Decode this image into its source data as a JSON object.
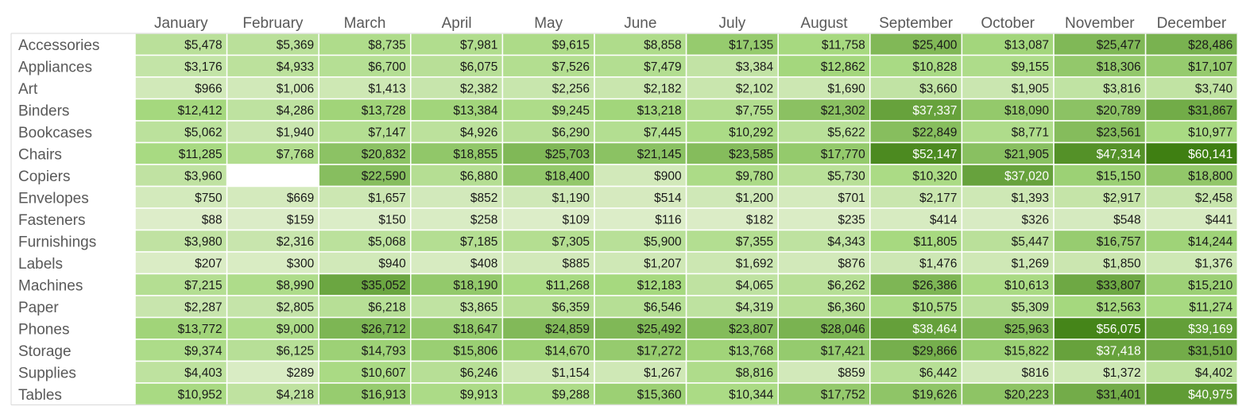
{
  "chart_data": {
    "type": "heatmap",
    "title": "",
    "xlabel": "",
    "ylabel": "",
    "columns": [
      "January",
      "February",
      "March",
      "April",
      "May",
      "June",
      "July",
      "August",
      "September",
      "October",
      "November",
      "December"
    ],
    "rows": [
      "Accessories",
      "Appliances",
      "Art",
      "Binders",
      "Bookcases",
      "Chairs",
      "Copiers",
      "Envelopes",
      "Fasteners",
      "Furnishings",
      "Labels",
      "Machines",
      "Paper",
      "Phones",
      "Storage",
      "Supplies",
      "Tables"
    ],
    "value_format": "currency-usd-no-decimals",
    "color_scale": {
      "low": "#e2efd0",
      "mid": "#a6d97f",
      "high": "#3f7f12",
      "text_dark": "#1a1a1a",
      "text_light": "#ffffff",
      "empty": "#ffffff"
    },
    "values": [
      [
        5478,
        5369,
        8735,
        7981,
        9615,
        8858,
        17135,
        11758,
        25400,
        13087,
        25477,
        28486
      ],
      [
        3176,
        4933,
        6700,
        6075,
        7526,
        7479,
        3384,
        12862,
        10828,
        9155,
        18306,
        17107
      ],
      [
        966,
        1006,
        1413,
        2382,
        2256,
        2182,
        2102,
        1690,
        3660,
        1905,
        3816,
        3740
      ],
      [
        12412,
        4286,
        13728,
        13384,
        9245,
        13218,
        7755,
        21302,
        37337,
        18090,
        20789,
        31867
      ],
      [
        5062,
        1940,
        7147,
        4926,
        6290,
        7445,
        10292,
        5622,
        22849,
        8771,
        23561,
        10977
      ],
      [
        11285,
        7768,
        20832,
        18855,
        25703,
        21145,
        23585,
        17770,
        52147,
        21905,
        47314,
        60141
      ],
      [
        3960,
        null,
        22590,
        6880,
        18400,
        900,
        9780,
        5730,
        10320,
        37020,
        15150,
        18800
      ],
      [
        750,
        669,
        1657,
        852,
        1190,
        514,
        1200,
        701,
        2177,
        1393,
        2917,
        2458
      ],
      [
        88,
        159,
        150,
        258,
        109,
        116,
        182,
        235,
        414,
        326,
        548,
        441
      ],
      [
        3980,
        2316,
        5068,
        7185,
        7305,
        5900,
        7355,
        4343,
        11805,
        5447,
        16757,
        14244
      ],
      [
        207,
        300,
        940,
        408,
        885,
        1207,
        1692,
        876,
        1476,
        1269,
        1850,
        1376
      ],
      [
        7215,
        8990,
        35052,
        18190,
        11268,
        12183,
        4065,
        6262,
        26386,
        10613,
        33807,
        15210
      ],
      [
        2287,
        2805,
        6218,
        3865,
        6359,
        6546,
        4319,
        6360,
        10575,
        5309,
        12563,
        11274
      ],
      [
        13772,
        9000,
        26712,
        18647,
        24859,
        25492,
        23807,
        28046,
        38464,
        25963,
        56075,
        39169
      ],
      [
        9374,
        6125,
        14793,
        15806,
        14670,
        17272,
        13768,
        17421,
        29866,
        15822,
        37418,
        31510
      ],
      [
        4403,
        289,
        10607,
        6246,
        1154,
        1267,
        8816,
        859,
        6442,
        816,
        1372,
        4402
      ],
      [
        10952,
        4218,
        16913,
        9913,
        9288,
        15360,
        10344,
        17752,
        19626,
        20223,
        31401,
        40975
      ]
    ]
  }
}
